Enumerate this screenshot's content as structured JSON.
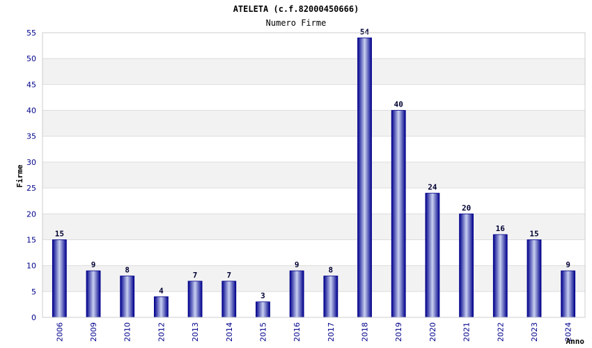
{
  "chart_data": {
    "type": "bar",
    "title": "ATELETA (c.f.82000450666)",
    "subtitle": "Numero Firme",
    "xlabel": "Anno",
    "ylabel": "Firme",
    "categories": [
      "2006",
      "2009",
      "2010",
      "2012",
      "2013",
      "2014",
      "2015",
      "2016",
      "2017",
      "2018",
      "2019",
      "2020",
      "2021",
      "2022",
      "2023",
      "2024"
    ],
    "values": [
      15,
      9,
      8,
      4,
      7,
      7,
      3,
      9,
      8,
      54,
      40,
      24,
      20,
      16,
      15,
      9
    ],
    "ylim": [
      0,
      55
    ],
    "yticks": [
      0,
      5,
      10,
      15,
      20,
      25,
      30,
      35,
      40,
      45,
      50,
      55
    ],
    "grid": true,
    "legend": "none",
    "colors": {
      "bar_edge": "#00008b",
      "bar_center": "#c8d0f0",
      "band": "#f2f2f2",
      "gridline": "#dddddd",
      "tick_text": "#00008b"
    }
  }
}
